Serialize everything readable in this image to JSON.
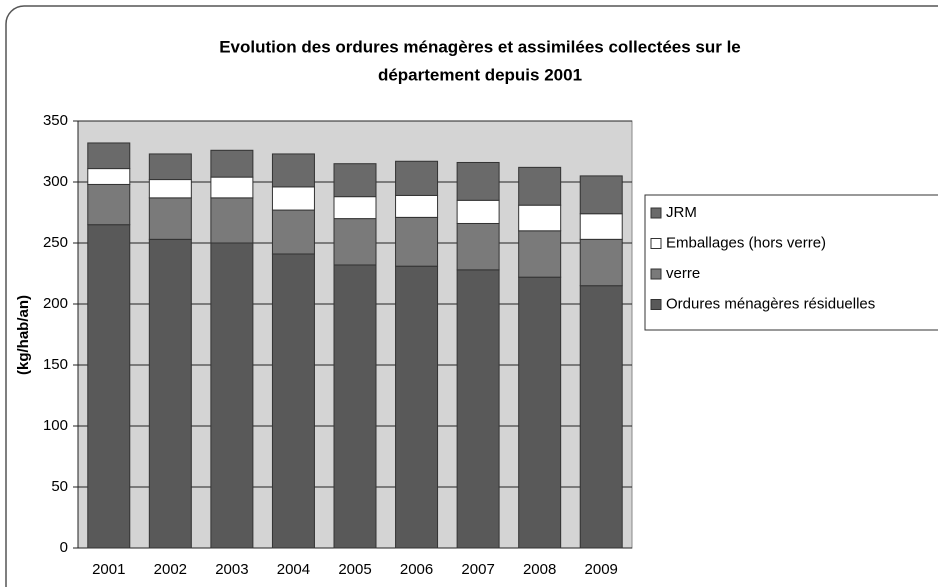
{
  "chart_data": {
    "type": "stacked_bar",
    "title": [
      "Evolution des ordures ménagères et assimilées collectées  sur le",
      "département depuis 2001"
    ],
    "y_label": "(kg/hab/an)",
    "categories": [
      "2001",
      "2002",
      "2003",
      "2004",
      "2005",
      "2006",
      "2007",
      "2008",
      "2009"
    ],
    "series": [
      {
        "name": "Ordures ménagères résiduelles",
        "color": "#595959",
        "values": [
          265,
          253,
          250,
          241,
          232,
          231,
          228,
          222,
          215
        ]
      },
      {
        "name": "verre",
        "color": "#7a7a7a",
        "values": [
          33,
          34,
          37,
          36,
          38,
          40,
          38,
          38,
          38
        ]
      },
      {
        "name": "Emballages (hors verre)",
        "color": "#ffffff",
        "values": [
          13,
          15,
          17,
          19,
          18,
          18,
          19,
          21,
          21
        ]
      },
      {
        "name": "JRM",
        "color": "#6a6a6a",
        "values": [
          21,
          21,
          22,
          27,
          27,
          28,
          31,
          31,
          31
        ]
      }
    ],
    "ylim": [
      0,
      350
    ],
    "yticks": [
      0,
      50,
      100,
      150,
      200,
      250,
      300,
      350
    ],
    "grid": true,
    "legend": "right"
  }
}
